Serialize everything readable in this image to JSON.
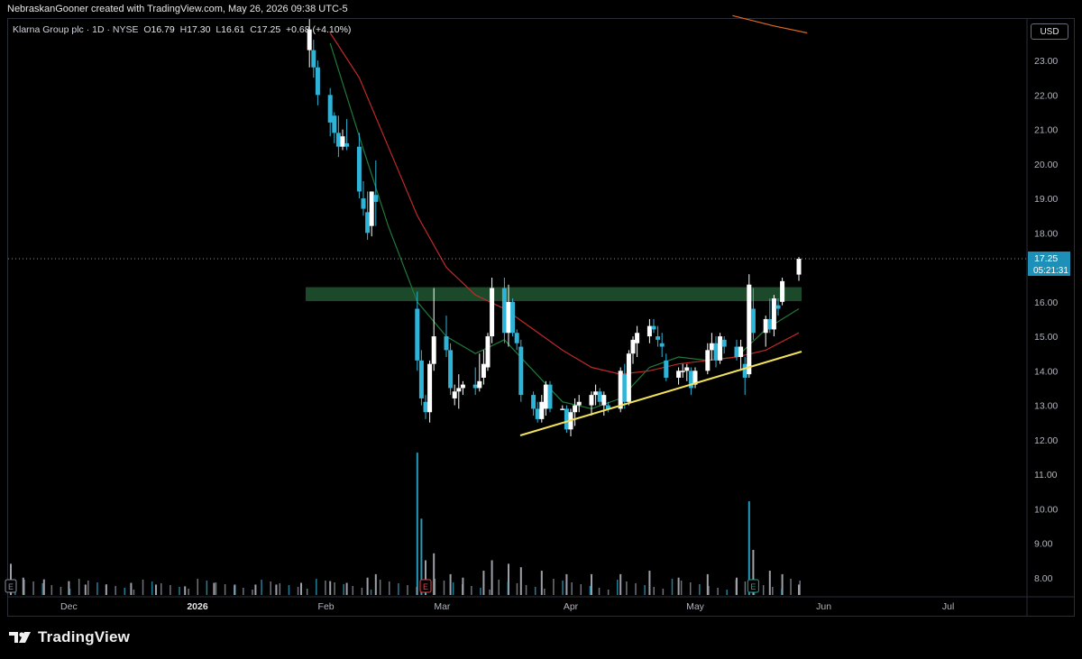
{
  "header": {
    "attribution": "NebraskanGooner created with TradingView.com, May 26, 2026 09:38 UTC-5"
  },
  "legend": {
    "symbol": "Klarna Group plc · 1D · NYSE",
    "open_label": "O",
    "open": "16.79",
    "high_label": "H",
    "high": "17.30",
    "low_label": "L",
    "low": "16.61",
    "close_label": "C",
    "close": "17.25",
    "change": "+0.68 (+4.10%)"
  },
  "currency_button": "USD",
  "price_tag": {
    "price": "17.25",
    "countdown": "05:21:31"
  },
  "branding": {
    "name": "TradingView"
  },
  "colors": {
    "up_candle": "#ffffff",
    "down_candle": "#2fb4d8",
    "ma_fast": "#1f7a3a",
    "ma_slow": "#c02929",
    "ma_long": "#e2691f",
    "zone": "#1e4d2b",
    "trendline": "#f2e15c",
    "price_tag_bg": "#1c90b8"
  },
  "chart_data": {
    "type": "candlestick",
    "title": "Klarna Group plc · 1D · NYSE",
    "y_axis": {
      "ticks": [
        "23.00",
        "22.00",
        "21.00",
        "20.00",
        "19.00",
        "18.00",
        "17.00",
        "16.00",
        "15.00",
        "14.00",
        "13.00",
        "12.00",
        "11.00",
        "10.00",
        "9.00",
        "8.00"
      ],
      "range": [
        7.6,
        24.0
      ]
    },
    "x_axis": {
      "ticks": [
        "Dec",
        "2026",
        "Feb",
        "Mar",
        "Apr",
        "May",
        "Jun",
        "Jul"
      ],
      "range": [
        "2025-11-17",
        "2026-07-31"
      ]
    },
    "candles": [
      {
        "date": "2026-01-28",
        "o": 23.3,
        "h": 24.2,
        "l": 22.8,
        "c": 23.9
      },
      {
        "date": "2026-01-29",
        "o": 23.3,
        "h": 23.6,
        "l": 22.5,
        "c": 22.8
      },
      {
        "date": "2026-01-30",
        "o": 22.8,
        "h": 23.0,
        "l": 21.7,
        "c": 22.0
      },
      {
        "date": "2026-02-02",
        "o": 22.0,
        "h": 22.2,
        "l": 20.8,
        "c": 21.2
      },
      {
        "date": "2026-02-03",
        "o": 21.4,
        "h": 21.5,
        "l": 20.6,
        "c": 20.9
      },
      {
        "date": "2026-02-04",
        "o": 20.9,
        "h": 21.4,
        "l": 20.2,
        "c": 20.5
      },
      {
        "date": "2026-02-05",
        "o": 20.5,
        "h": 21.0,
        "l": 20.4,
        "c": 20.8
      },
      {
        "date": "2026-02-06",
        "o": 20.6,
        "h": 21.3,
        "l": 20.4,
        "c": 20.5
      },
      {
        "date": "2026-02-09",
        "o": 20.5,
        "h": 20.9,
        "l": 19.0,
        "c": 19.2
      },
      {
        "date": "2026-02-10",
        "o": 19.0,
        "h": 19.5,
        "l": 18.5,
        "c": 18.7
      },
      {
        "date": "2026-02-11",
        "o": 18.6,
        "h": 19.2,
        "l": 17.8,
        "c": 18.0
      },
      {
        "date": "2026-02-12",
        "o": 18.2,
        "h": 19.2,
        "l": 17.9,
        "c": 19.2
      },
      {
        "date": "2026-02-13",
        "o": 19.1,
        "h": 20.1,
        "l": 18.2,
        "c": 18.9
      },
      {
        "date": "2026-02-23",
        "o": 15.8,
        "h": 16.3,
        "l": 14.0,
        "c": 14.3
      },
      {
        "date": "2026-02-24",
        "o": 14.3,
        "h": 14.6,
        "l": 13.0,
        "c": 13.2
      },
      {
        "date": "2026-02-25",
        "o": 13.1,
        "h": 13.3,
        "l": 12.6,
        "c": 12.8
      },
      {
        "date": "2026-02-26",
        "o": 12.8,
        "h": 14.3,
        "l": 12.5,
        "c": 14.2
      },
      {
        "date": "2026-02-27",
        "o": 14.2,
        "h": 16.4,
        "l": 14.0,
        "c": 15.0
      },
      {
        "date": "2026-03-02",
        "o": 15.0,
        "h": 15.6,
        "l": 14.4,
        "c": 14.6
      },
      {
        "date": "2026-03-03",
        "o": 14.6,
        "h": 14.8,
        "l": 13.3,
        "c": 13.5
      },
      {
        "date": "2026-03-04",
        "o": 13.2,
        "h": 13.6,
        "l": 13.0,
        "c": 13.4
      },
      {
        "date": "2026-03-05",
        "o": 13.4,
        "h": 13.9,
        "l": 12.9,
        "c": 13.5
      },
      {
        "date": "2026-03-06",
        "o": 13.5,
        "h": 13.7,
        "l": 13.3,
        "c": 13.6
      },
      {
        "date": "2026-03-09",
        "o": 13.6,
        "h": 14.1,
        "l": 13.3,
        "c": 13.5
      },
      {
        "date": "2026-03-10",
        "o": 13.5,
        "h": 14.5,
        "l": 13.4,
        "c": 13.7
      },
      {
        "date": "2026-03-11",
        "o": 13.8,
        "h": 14.6,
        "l": 13.6,
        "c": 14.2
      },
      {
        "date": "2026-03-12",
        "o": 14.1,
        "h": 15.1,
        "l": 14.0,
        "c": 15.0
      },
      {
        "date": "2026-03-13",
        "o": 15.0,
        "h": 16.7,
        "l": 14.8,
        "c": 16.4
      },
      {
        "date": "2026-03-16",
        "o": 16.4,
        "h": 16.7,
        "l": 14.8,
        "c": 15.1
      },
      {
        "date": "2026-03-17",
        "o": 15.1,
        "h": 16.5,
        "l": 14.7,
        "c": 16.0
      },
      {
        "date": "2026-03-18",
        "o": 16.0,
        "h": 16.1,
        "l": 15.0,
        "c": 15.1
      },
      {
        "date": "2026-03-19",
        "o": 15.1,
        "h": 15.2,
        "l": 14.6,
        "c": 14.8
      },
      {
        "date": "2026-03-20",
        "o": 14.7,
        "h": 14.9,
        "l": 13.1,
        "c": 13.3
      },
      {
        "date": "2026-03-23",
        "o": 13.3,
        "h": 13.4,
        "l": 12.7,
        "c": 12.9
      },
      {
        "date": "2026-03-24",
        "o": 12.9,
        "h": 13.1,
        "l": 12.5,
        "c": 12.6
      },
      {
        "date": "2026-03-25",
        "o": 12.6,
        "h": 13.3,
        "l": 12.5,
        "c": 13.1
      },
      {
        "date": "2026-03-26",
        "o": 12.9,
        "h": 13.7,
        "l": 12.7,
        "c": 13.6
      },
      {
        "date": "2026-03-27",
        "o": 13.6,
        "h": 13.7,
        "l": 12.8,
        "c": 12.9
      },
      {
        "date": "2026-03-30",
        "o": 12.9,
        "h": 13.0,
        "l": 12.9,
        "c": 12.9
      },
      {
        "date": "2026-03-31",
        "o": 12.9,
        "h": 13.0,
        "l": 12.2,
        "c": 12.3
      },
      {
        "date": "2026-04-01",
        "o": 12.3,
        "h": 12.9,
        "l": 12.1,
        "c": 12.8
      },
      {
        "date": "2026-04-02",
        "o": 12.8,
        "h": 13.2,
        "l": 12.4,
        "c": 13.0
      },
      {
        "date": "2026-04-03",
        "o": 13.0,
        "h": 13.3,
        "l": 12.8,
        "c": 13.1
      },
      {
        "date": "2026-04-06",
        "o": 13.0,
        "h": 13.4,
        "l": 12.7,
        "c": 13.3
      },
      {
        "date": "2026-04-07",
        "o": 13.3,
        "h": 13.6,
        "l": 13.0,
        "c": 13.4
      },
      {
        "date": "2026-04-08",
        "o": 13.4,
        "h": 13.5,
        "l": 13.0,
        "c": 13.1
      },
      {
        "date": "2026-04-09",
        "o": 13.0,
        "h": 13.4,
        "l": 12.7,
        "c": 13.3
      },
      {
        "date": "2026-04-10",
        "o": 13.0,
        "h": 13.1,
        "l": 12.8,
        "c": 12.9
      },
      {
        "date": "2026-04-13",
        "o": 12.9,
        "h": 14.1,
        "l": 12.8,
        "c": 14.0
      },
      {
        "date": "2026-04-14",
        "o": 13.9,
        "h": 14.2,
        "l": 12.9,
        "c": 13.1
      },
      {
        "date": "2026-04-15",
        "o": 13.1,
        "h": 14.6,
        "l": 13.0,
        "c": 14.5
      },
      {
        "date": "2026-04-16",
        "o": 14.5,
        "h": 15.0,
        "l": 14.2,
        "c": 14.9
      },
      {
        "date": "2026-04-17",
        "o": 14.8,
        "h": 15.3,
        "l": 14.4,
        "c": 15.1
      },
      {
        "date": "2026-04-20",
        "o": 15.0,
        "h": 15.5,
        "l": 14.8,
        "c": 15.3
      },
      {
        "date": "2026-04-21",
        "o": 15.3,
        "h": 15.5,
        "l": 15.1,
        "c": 15.2
      },
      {
        "date": "2026-04-22",
        "o": 15.0,
        "h": 15.3,
        "l": 14.7,
        "c": 14.9
      },
      {
        "date": "2026-04-23",
        "o": 14.8,
        "h": 15.1,
        "l": 14.4,
        "c": 14.7
      },
      {
        "date": "2026-04-24",
        "o": 14.3,
        "h": 14.5,
        "l": 13.7,
        "c": 13.8
      },
      {
        "date": "2026-04-27",
        "o": 13.8,
        "h": 14.1,
        "l": 13.6,
        "c": 14.0
      },
      {
        "date": "2026-04-28",
        "o": 14.0,
        "h": 14.2,
        "l": 13.8,
        "c": 14.0
      },
      {
        "date": "2026-04-29",
        "o": 14.0,
        "h": 14.2,
        "l": 13.7,
        "c": 14.1
      },
      {
        "date": "2026-04-30",
        "o": 14.0,
        "h": 14.1,
        "l": 13.3,
        "c": 13.5
      },
      {
        "date": "2026-05-01",
        "o": 13.6,
        "h": 14.1,
        "l": 13.5,
        "c": 14.0
      },
      {
        "date": "2026-05-04",
        "o": 14.0,
        "h": 14.8,
        "l": 13.9,
        "c": 14.6
      },
      {
        "date": "2026-05-05",
        "o": 14.6,
        "h": 15.1,
        "l": 14.3,
        "c": 14.8
      },
      {
        "date": "2026-05-06",
        "o": 14.8,
        "h": 15.0,
        "l": 14.1,
        "c": 14.3
      },
      {
        "date": "2026-05-07",
        "o": 14.3,
        "h": 15.1,
        "l": 14.2,
        "c": 15.0
      },
      {
        "date": "2026-05-08",
        "o": 14.9,
        "h": 15.0,
        "l": 14.5,
        "c": 14.7
      },
      {
        "date": "2026-05-11",
        "o": 14.7,
        "h": 14.9,
        "l": 14.3,
        "c": 14.4
      },
      {
        "date": "2026-05-12",
        "o": 14.4,
        "h": 14.9,
        "l": 14.0,
        "c": 14.7
      },
      {
        "date": "2026-05-13",
        "o": 14.2,
        "h": 14.4,
        "l": 13.3,
        "c": 13.8
      },
      {
        "date": "2026-05-14",
        "o": 13.9,
        "h": 16.8,
        "l": 13.8,
        "c": 16.5
      },
      {
        "date": "2026-05-15",
        "o": 15.8,
        "h": 16.4,
        "l": 14.9,
        "c": 15.1
      },
      {
        "date": "2026-05-18",
        "o": 15.1,
        "h": 15.6,
        "l": 14.7,
        "c": 15.5
      },
      {
        "date": "2026-05-19",
        "o": 15.5,
        "h": 16.1,
        "l": 15.1,
        "c": 15.2
      },
      {
        "date": "2026-05-20",
        "o": 15.2,
        "h": 16.2,
        "l": 15.0,
        "c": 16.1
      },
      {
        "date": "2026-05-21",
        "o": 15.9,
        "h": 16.1,
        "l": 15.6,
        "c": 15.8
      },
      {
        "date": "2026-05-22",
        "o": 16.0,
        "h": 16.7,
        "l": 15.9,
        "c": 16.6
      },
      {
        "date": "2026-05-26",
        "o": 16.79,
        "h": 17.3,
        "l": 16.61,
        "c": 17.25
      }
    ],
    "volume": [
      {
        "date": "2025-11-17",
        "v": 0.9
      },
      {
        "date": "2025-11-20",
        "v": 0.5
      },
      {
        "date": "2025-11-25",
        "v": 0.45
      },
      {
        "date": "2025-12-01",
        "v": 0.4
      },
      {
        "date": "2025-12-05",
        "v": 0.3
      },
      {
        "date": "2025-12-10",
        "v": 0.3
      },
      {
        "date": "2025-12-16",
        "v": 0.35
      },
      {
        "date": "2025-12-22",
        "v": 0.3
      },
      {
        "date": "2025-12-29",
        "v": 0.25
      },
      {
        "date": "2026-01-05",
        "v": 0.35
      },
      {
        "date": "2026-01-10",
        "v": 0.3
      },
      {
        "date": "2026-01-15",
        "v": 0.3
      },
      {
        "date": "2026-01-20",
        "v": 0.3
      },
      {
        "date": "2026-01-26",
        "v": 0.35
      },
      {
        "date": "2026-02-02",
        "v": 0.4
      },
      {
        "date": "2026-02-06",
        "v": 0.35
      },
      {
        "date": "2026-02-11",
        "v": 0.5
      },
      {
        "date": "2026-02-13",
        "v": 0.6
      },
      {
        "date": "2026-02-23",
        "v": 4.1
      },
      {
        "date": "2026-02-24",
        "v": 2.2
      },
      {
        "date": "2026-02-25",
        "v": 1.0
      },
      {
        "date": "2026-02-27",
        "v": 1.2
      },
      {
        "date": "2026-03-03",
        "v": 0.6
      },
      {
        "date": "2026-03-06",
        "v": 0.5
      },
      {
        "date": "2026-03-11",
        "v": 0.7
      },
      {
        "date": "2026-03-13",
        "v": 1.0
      },
      {
        "date": "2026-03-17",
        "v": 0.9
      },
      {
        "date": "2026-03-20",
        "v": 0.8
      },
      {
        "date": "2026-03-25",
        "v": 0.7
      },
      {
        "date": "2026-03-31",
        "v": 0.6
      },
      {
        "date": "2026-04-06",
        "v": 0.6
      },
      {
        "date": "2026-04-13",
        "v": 0.6
      },
      {
        "date": "2026-04-20",
        "v": 0.7
      },
      {
        "date": "2026-04-27",
        "v": 0.5
      },
      {
        "date": "2026-05-04",
        "v": 0.6
      },
      {
        "date": "2026-05-11",
        "v": 0.5
      },
      {
        "date": "2026-05-14",
        "v": 2.7
      },
      {
        "date": "2026-05-15",
        "v": 1.3
      },
      {
        "date": "2026-05-19",
        "v": 0.7
      },
      {
        "date": "2026-05-22",
        "v": 0.6
      },
      {
        "date": "2026-05-26",
        "v": 0.3
      }
    ],
    "moving_averages": [
      {
        "color": "#1f7a3a",
        "points": [
          [
            "2026-02-02",
            23.5
          ],
          [
            "2026-02-09",
            20.8
          ],
          [
            "2026-02-16",
            18.2
          ],
          [
            "2026-02-23",
            16.0
          ],
          [
            "2026-03-02",
            15.0
          ],
          [
            "2026-03-09",
            14.5
          ],
          [
            "2026-03-16",
            14.9
          ],
          [
            "2026-03-23",
            14.0
          ],
          [
            "2026-03-30",
            13.1
          ],
          [
            "2026-04-06",
            12.9
          ],
          [
            "2026-04-13",
            13.2
          ],
          [
            "2026-04-20",
            14.1
          ],
          [
            "2026-04-27",
            14.4
          ],
          [
            "2026-05-04",
            14.3
          ],
          [
            "2026-05-11",
            14.4
          ],
          [
            "2026-05-18",
            15.2
          ],
          [
            "2026-05-26",
            15.8
          ]
        ]
      },
      {
        "color": "#c02929",
        "points": [
          [
            "2026-02-02",
            23.8
          ],
          [
            "2026-02-09",
            22.5
          ],
          [
            "2026-02-16",
            20.5
          ],
          [
            "2026-02-23",
            18.5
          ],
          [
            "2026-03-02",
            17.0
          ],
          [
            "2026-03-09",
            16.2
          ],
          [
            "2026-03-16",
            15.8
          ],
          [
            "2026-03-23",
            15.2
          ],
          [
            "2026-03-30",
            14.6
          ],
          [
            "2026-04-06",
            14.1
          ],
          [
            "2026-04-13",
            13.9
          ],
          [
            "2026-04-20",
            14.0
          ],
          [
            "2026-04-27",
            14.2
          ],
          [
            "2026-05-04",
            14.3
          ],
          [
            "2026-05-11",
            14.4
          ],
          [
            "2026-05-18",
            14.6
          ],
          [
            "2026-05-26",
            15.1
          ]
        ]
      },
      {
        "color": "#e2691f",
        "points": [
          [
            "2026-05-10",
            24.3
          ],
          [
            "2026-05-20",
            24.0
          ],
          [
            "2026-05-28",
            23.8
          ]
        ]
      }
    ],
    "annotations": {
      "resistance_zone": {
        "from": "2026-02-13",
        "to": "2026-05-26",
        "low": 16.1,
        "high": 16.4
      },
      "trendline": {
        "start": [
          "2026-03-19",
          12.1
        ],
        "end": [
          "2026-05-26",
          14.5
        ]
      },
      "last_price_line": 17.25,
      "earnings_markers": [
        {
          "date": "2025-11-17",
          "label": "E",
          "color": "#8a8f99"
        },
        {
          "date": "2026-02-25",
          "label": "E",
          "color": "#e0434d"
        },
        {
          "date": "2026-05-15",
          "label": "E",
          "color": "#2b9e8f"
        }
      ]
    }
  }
}
